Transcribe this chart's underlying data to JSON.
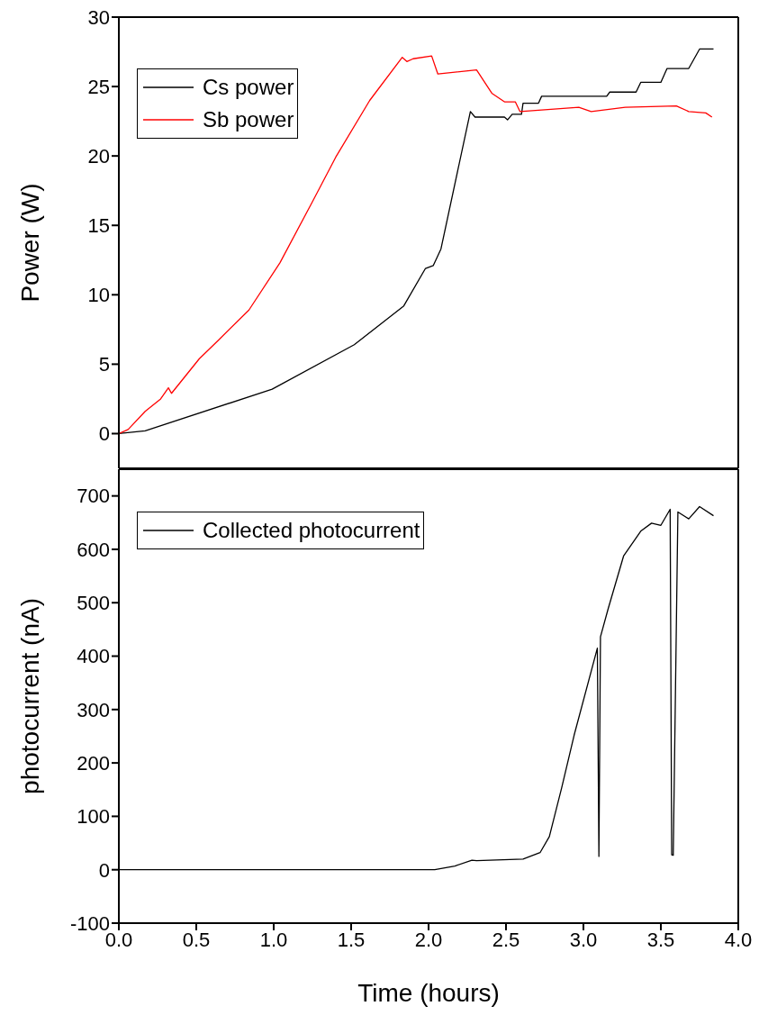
{
  "chart_data": [
    {
      "type": "line",
      "ylabel": "Power (W)",
      "xlim": [
        0,
        4.0
      ],
      "xticks": [
        {
          "value": 0,
          "label": null
        },
        {
          "value": 0.5,
          "label": null
        },
        {
          "value": 1,
          "label": null
        },
        {
          "value": 1.5,
          "label": null
        },
        {
          "value": 2,
          "label": null
        },
        {
          "value": 2.5,
          "label": null
        },
        {
          "value": 3,
          "label": null
        },
        {
          "value": 3.5,
          "label": null
        },
        {
          "value": 4,
          "label": null
        }
      ],
      "ylim": [
        -2.5,
        30
      ],
      "yticks": [
        0,
        5,
        10,
        15,
        20,
        25,
        30
      ],
      "tick_labels": "y",
      "legend": "top left",
      "marker": "none",
      "line_style": "solid",
      "grid": false,
      "series": [
        {
          "name": "Cs power",
          "color": "#000000",
          "x": [
            0,
            0.17,
            0.99,
            1.52,
            1.84,
            1.98,
            2.03,
            2.08,
            2.27,
            2.3,
            2.49,
            2.51,
            2.54,
            2.6,
            2.61,
            2.71,
            2.73,
            3.15,
            3.17,
            3.34,
            3.37,
            3.5,
            3.54,
            3.68,
            3.75,
            3.84
          ],
          "values": [
            0,
            0.2,
            3.2,
            6.4,
            9.2,
            11.9,
            12.1,
            13.3,
            23.2,
            22.8,
            22.8,
            22.6,
            23.0,
            23.0,
            23.8,
            23.8,
            24.3,
            24.3,
            24.6,
            24.6,
            25.3,
            25.3,
            26.3,
            26.3,
            27.7,
            27.7
          ]
        },
        {
          "name": "Sb power",
          "color": "#ff0000",
          "x": [
            0,
            0.06,
            0.17,
            0.27,
            0.32,
            0.34,
            0.52,
            0.64,
            0.84,
            1.04,
            1.25,
            1.4,
            1.62,
            1.83,
            1.86,
            1.9,
            2.02,
            2.06,
            2.31,
            2.41,
            2.49,
            2.56,
            2.59,
            2.97,
            3.05,
            3.27,
            3.6,
            3.68,
            3.79,
            3.83
          ],
          "values": [
            0,
            0.3,
            1.6,
            2.5,
            3.3,
            2.9,
            5.4,
            6.7,
            8.9,
            12.3,
            16.7,
            19.9,
            24.0,
            27.1,
            26.8,
            27.0,
            27.2,
            25.9,
            26.2,
            24.5,
            23.9,
            23.9,
            23.2,
            23.5,
            23.2,
            23.5,
            23.6,
            23.2,
            23.1,
            22.8
          ]
        }
      ]
    },
    {
      "type": "line",
      "xlabel": "Time (hours)",
      "ylabel": "photocurrent (nA)",
      "xlim": [
        0,
        4.0
      ],
      "xticks": [
        {
          "value": 0,
          "label": "0.0"
        },
        {
          "value": 0.5,
          "label": "0.5"
        },
        {
          "value": 1,
          "label": "1.0"
        },
        {
          "value": 1.5,
          "label": "1.5"
        },
        {
          "value": 2,
          "label": "2.0"
        },
        {
          "value": 2.5,
          "label": "2.5"
        },
        {
          "value": 3,
          "label": "3.0"
        },
        {
          "value": 3.5,
          "label": "3.5"
        },
        {
          "value": 4,
          "label": "4.0"
        }
      ],
      "ylim": [
        -100,
        750
      ],
      "yticks": [
        -100,
        0,
        100,
        200,
        300,
        400,
        500,
        600,
        700
      ],
      "legend": "top left",
      "marker": "none",
      "line_style": "solid",
      "grid": false,
      "series": [
        {
          "name": "Collected photocurrent",
          "color": "#000000",
          "x": [
            0,
            0.5,
            1.0,
            1.5,
            2.04,
            2.17,
            2.28,
            2.31,
            2.61,
            2.72,
            2.78,
            2.86,
            2.94,
            3.09,
            3.1,
            3.11,
            3.16,
            3.26,
            3.37,
            3.44,
            3.5,
            3.56,
            3.57,
            3.58,
            3.61,
            3.68,
            3.75,
            3.84
          ],
          "values": [
            0,
            0,
            0,
            0,
            0,
            7,
            18,
            17,
            20,
            32,
            62,
            154,
            252,
            415,
            25,
            436,
            489,
            588,
            634,
            649,
            645,
            675,
            28,
            27,
            670,
            657,
            680,
            663
          ]
        }
      ]
    }
  ]
}
